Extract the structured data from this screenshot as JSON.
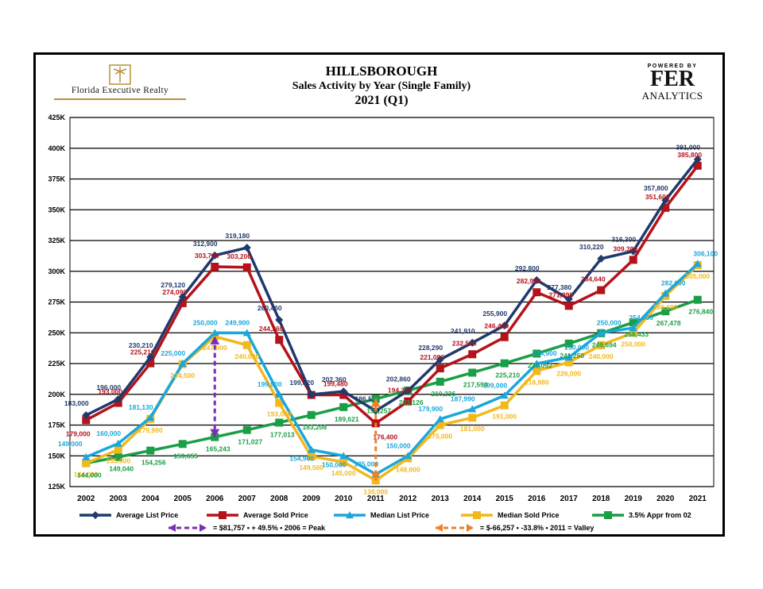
{
  "header": {
    "title": "HILLSBOROUGH",
    "subtitle": "Sales Activity by Year (Single Family)",
    "period": "2021 (Q1)"
  },
  "logos": {
    "left_text": "Florida Executive Realty",
    "right_top": "POWERED BY",
    "right_mid": "FER",
    "right_bottom": "ANALYTICS"
  },
  "chart_data": {
    "type": "line",
    "x": [
      "2002",
      "2003",
      "2004",
      "2005",
      "2006",
      "2007",
      "2008",
      "2009",
      "2010",
      "2011",
      "2012",
      "2013",
      "2014",
      "2015",
      "2016",
      "2017",
      "2018",
      "2019",
      "2020",
      "2021"
    ],
    "ylim": [
      125000,
      425000
    ],
    "yticks": [
      125000,
      150000,
      175000,
      200000,
      225000,
      250000,
      275000,
      300000,
      325000,
      350000,
      375000,
      400000,
      425000
    ],
    "ytick_labels": [
      "125K",
      "150K",
      "175K",
      "200K",
      "225K",
      "250K",
      "275K",
      "300K",
      "325K",
      "350K",
      "375K",
      "400K",
      "425K"
    ],
    "grid": true,
    "legend_position": "bottom",
    "series": [
      {
        "name": "Average List Price",
        "color": "#1f3a6b",
        "marker": "diamond",
        "values": [
          183000,
          196000,
          230210,
          279120,
          312900,
          319180,
          260460,
          199820,
          202360,
          186500,
          202860,
          228290,
          241910,
          255900,
          292800,
          277380,
          310220,
          316300,
          357800,
          391000
        ],
        "labels": [
          "183,000",
          "196,000",
          "230,210",
          "279,120",
          "312,900",
          "319,180",
          "260,460",
          "199,820",
          "202,360",
          "186,5...",
          "202,860",
          "228,290",
          "241,910",
          "255,900",
          "292,800",
          "277,380",
          "310,220",
          "316,300",
          "357,800",
          "391,000"
        ]
      },
      {
        "name": "Average Sold Price",
        "color": "#b5121b",
        "marker": "square",
        "values": [
          179000,
          193000,
          225210,
          274090,
          303700,
          303200,
          244260,
          199480,
          199480,
          176400,
          194280,
          221090,
          232560,
          246460,
          282950,
          271890,
          284640,
          309300,
          351600,
          385800
        ],
        "labels": [
          "179,000",
          "193,000",
          "225,210",
          "274,090",
          "303,700",
          "303,200",
          "244,260",
          "",
          "199,480",
          "176,400",
          "194,280",
          "221,090",
          "232,560",
          "246,460",
          "282,950",
          "271,890",
          "284,640",
          "309,300",
          "351,600",
          "385,800"
        ]
      },
      {
        "name": "Median List Price",
        "color": "#1aa7dc",
        "marker": "triangle",
        "values": [
          149000,
          160000,
          181130,
          225000,
          250000,
          249900,
          199900,
          154900,
          150000,
          135000,
          150000,
          179900,
          187990,
          199000,
          224900,
          230000,
          250000,
          254000,
          282000,
          306100
        ],
        "labels": [
          "149,000",
          "160,000",
          "181,130",
          "225,000",
          "250,000",
          "249,900",
          "199,900",
          "154,900",
          "150,000",
          "135,000",
          "150,000",
          "179,900",
          "187,990",
          "199,000",
          "224,900",
          "230,000",
          "250,000",
          "254,000",
          "282,000",
          "306,100"
        ]
      },
      {
        "name": "Median Sold Price",
        "color": "#f2b81c",
        "marker": "square",
        "values": [
          144000,
          155000,
          179990,
          224500,
          247000,
          240000,
          193000,
          149500,
          145000,
          130000,
          148000,
          175000,
          181000,
          191000,
          218980,
          226000,
          240000,
          250000,
          280000,
          305000
        ],
        "labels": [
          "144,000",
          "155,000",
          "179,990",
          "224,500",
          "247,000",
          "240,000",
          "193,000",
          "149,500",
          "145,000",
          "130,000",
          "148,000",
          "175,000",
          "181,000",
          "191,000",
          "218,980",
          "226,000",
          "240,000",
          "250,000",
          "280,000",
          "305,000"
        ]
      },
      {
        "name": "3.5% Appr from 02",
        "color": "#1a9e46",
        "marker": "square",
        "values": [
          144000,
          149040,
          154256,
          159655,
          165243,
          171027,
          177013,
          183208,
          189621,
          196257,
          203126,
          210236,
          217594,
          225210,
          233092,
          241250,
          249694,
          258433,
          267478,
          276840
        ],
        "labels": [
          "144,000",
          "149,040",
          "154,256",
          "159,655",
          "165,243",
          "171,027",
          "177,013",
          "183,208",
          "189,621",
          "196,257",
          "203,126",
          "210,236",
          "217,594",
          "225,210",
          "233,092",
          "241,250",
          "249,694",
          "258,433",
          "267,478",
          "276,840"
        ]
      }
    ],
    "annotations": [
      {
        "text": "= $81,757 • + 49.5% • 2006 = Peak",
        "color": "#7b2fb0",
        "year": "2006",
        "from": 165243,
        "to": 247000
      },
      {
        "text": "= $-66,257 • -33.8% • 2011 = Valley",
        "color": "#f07f2a",
        "year": "2011",
        "from": 196257,
        "to": 130000
      }
    ]
  }
}
